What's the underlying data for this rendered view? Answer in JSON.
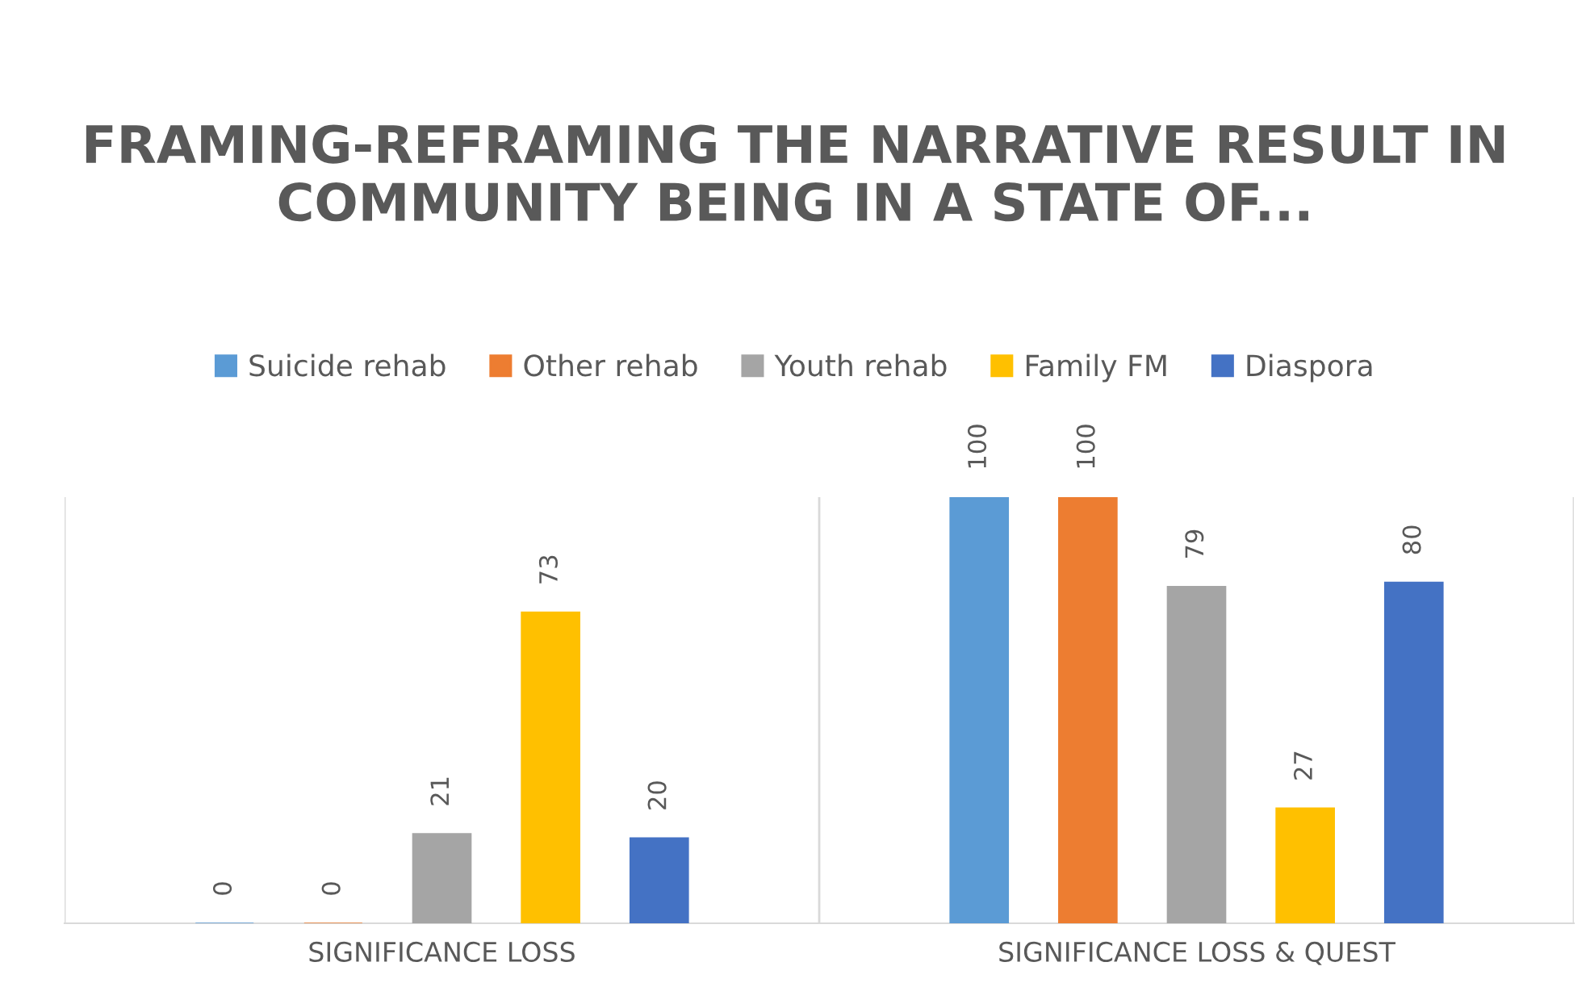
{
  "chart_data": {
    "type": "bar",
    "title": "FRAMING-REFRAMING THE NARRATIVE RESULT IN COMMUNITY BEING IN A STATE OF...",
    "categories": [
      "SIGNIFICANCE LOSS",
      "SIGNIFICANCE LOSS & QUEST"
    ],
    "series": [
      {
        "name": "Suicide rehab",
        "color": "#5b9bd5",
        "values": [
          0,
          100
        ]
      },
      {
        "name": "Other rehab",
        "color": "#ed7d31",
        "values": [
          0,
          100
        ]
      },
      {
        "name": "Youth rehab",
        "color": "#a5a5a5",
        "values": [
          21,
          79
        ]
      },
      {
        "name": "Family FM",
        "color": "#ffc000",
        "values": [
          73,
          27
        ]
      },
      {
        "name": "Diaspora",
        "color": "#4472c4",
        "values": [
          20,
          80
        ]
      }
    ],
    "data_labels": true,
    "legend": "top",
    "grid": "x"
  }
}
